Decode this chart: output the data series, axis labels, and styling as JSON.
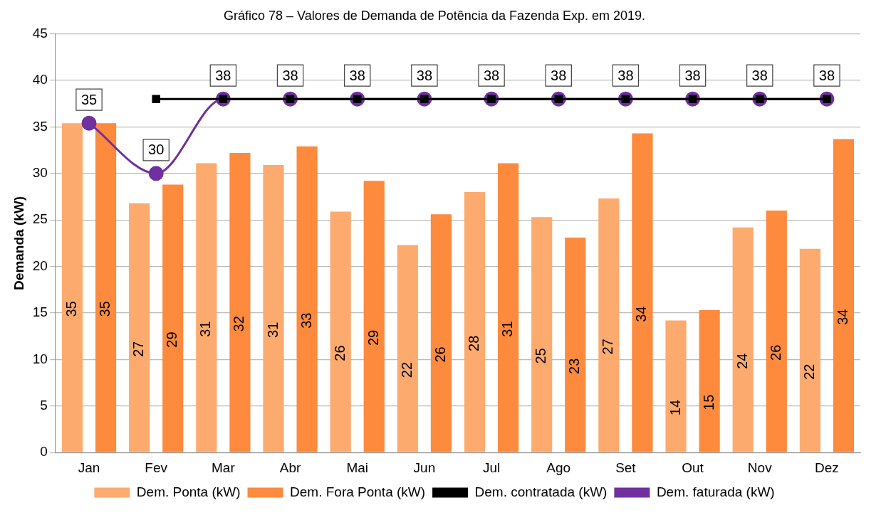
{
  "chart_data": {
    "type": "bar",
    "title": "Gráfico 78 – Valores de Demanda de Potência da Fazenda Exp. em 2019.",
    "ylabel": "Demanda (kW)",
    "categories": [
      "Jan",
      "Fev",
      "Mar",
      "Abr",
      "Mai",
      "Jun",
      "Jul",
      "Ago",
      "Set",
      "Out",
      "Nov",
      "Dez"
    ],
    "ylim": [
      0,
      45
    ],
    "yticks": [
      0,
      5,
      10,
      15,
      20,
      25,
      30,
      35,
      40,
      45
    ],
    "grid": "y",
    "legend": "bottom",
    "series": [
      {
        "name": "Dem. Ponta (kW)",
        "color": "#fdaa6f",
        "values": [
          35.4,
          26.8,
          31.1,
          30.9,
          25.9,
          22.3,
          28.0,
          25.3,
          27.3,
          14.2,
          24.2,
          21.9
        ],
        "value_labels": [
          "35",
          "27",
          "31",
          "31",
          "26",
          "22",
          "28",
          "25",
          "27",
          "14",
          "24",
          "22"
        ]
      },
      {
        "name": "Dem. Fora Ponta (kW)",
        "color": "#fd8a3d",
        "values": [
          35.4,
          28.8,
          32.2,
          32.9,
          29.2,
          25.6,
          31.1,
          23.1,
          34.3,
          15.3,
          26.0,
          33.7
        ],
        "value_labels": [
          "35",
          "29",
          "32",
          "33",
          "29",
          "26",
          "31",
          "23",
          "34",
          "15",
          "26",
          "34"
        ]
      },
      {
        "name": "Dem. contratada (kW)",
        "type": "line",
        "color": "#000000",
        "marker": "square",
        "values": [
          null,
          38,
          38,
          38,
          38,
          38,
          38,
          38,
          38,
          38,
          38,
          38
        ]
      },
      {
        "name": "Dem. faturada (kW)",
        "type": "line",
        "color": "#7030a0",
        "marker": "circle",
        "values": [
          35.4,
          30,
          38,
          38,
          38,
          38,
          38,
          38,
          38,
          38,
          38,
          38
        ],
        "value_labels": [
          "35",
          "30",
          "38",
          "38",
          "38",
          "38",
          "38",
          "38",
          "38",
          "38",
          "38",
          "38"
        ]
      }
    ]
  }
}
